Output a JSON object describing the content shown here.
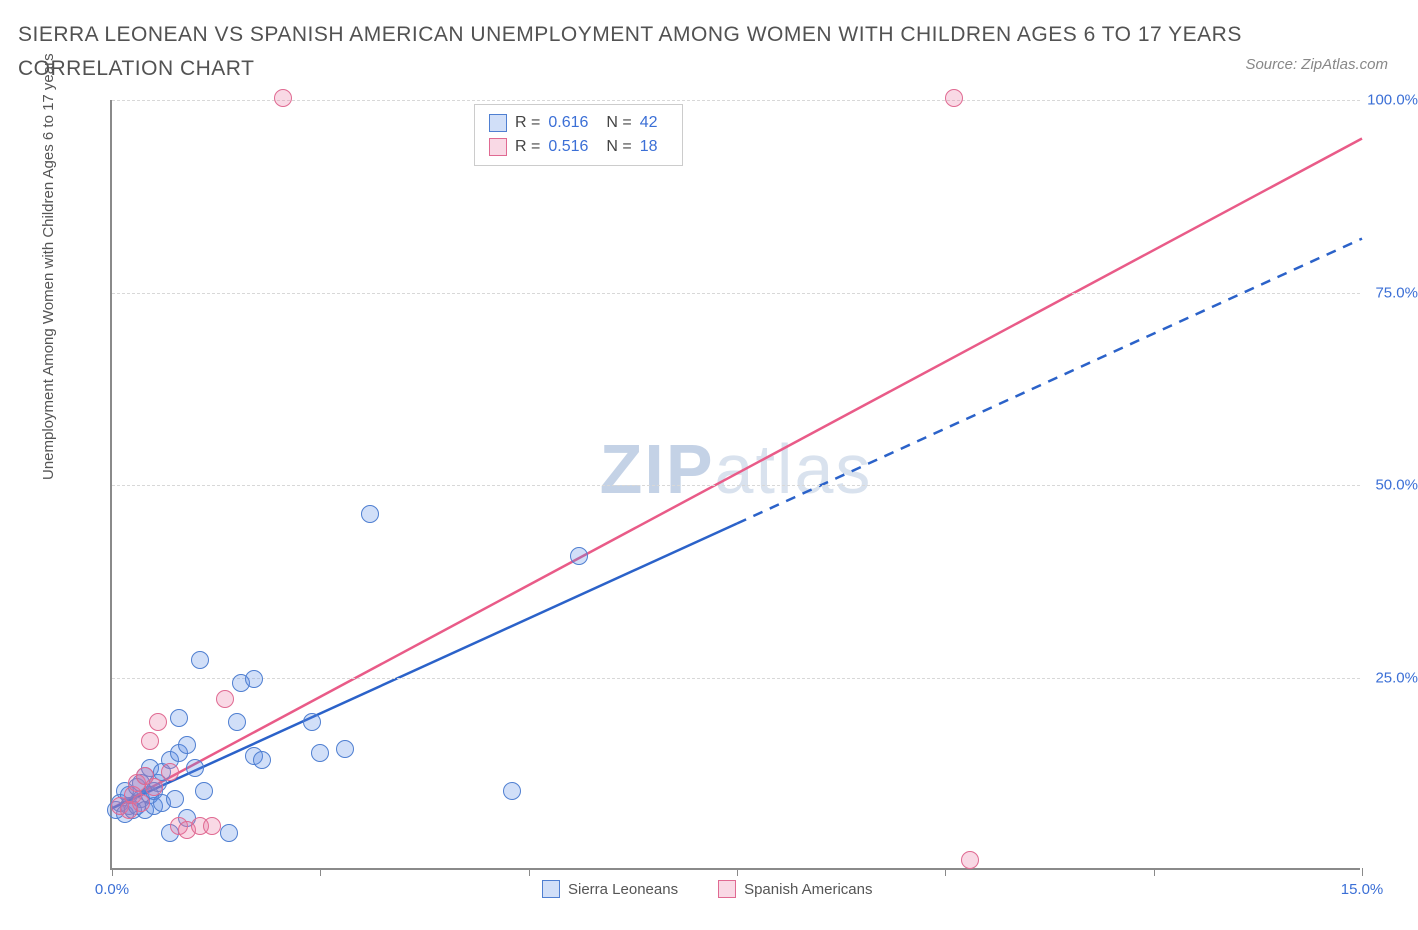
{
  "title": "SIERRA LEONEAN VS SPANISH AMERICAN UNEMPLOYMENT AMONG WOMEN WITH CHILDREN AGES 6 TO 17 YEARS CORRELATION CHART",
  "source": "Source: ZipAtlas.com",
  "watermark_bold": "ZIP",
  "watermark_light": "atlas",
  "ylabel": "Unemployment Among Women with Children Ages 6 to 17 years",
  "chart": {
    "type": "scatter",
    "background_color": "#ffffff",
    "grid_color": "#d8d8d8",
    "axis_color": "#8a8a8a",
    "x": {
      "min": 0.0,
      "max": 15.0,
      "ticks": [
        0.0,
        2.5,
        5.0,
        7.5,
        10.0,
        12.5,
        15.0
      ],
      "tick_labels": [
        "0.0%",
        "",
        "",
        "",
        "",
        "",
        "15.0%"
      ]
    },
    "y": {
      "min": 0.0,
      "max": 100.0,
      "ticks": [
        25.0,
        50.0,
        75.0,
        100.0
      ],
      "tick_labels": [
        "25.0%",
        "50.0%",
        "75.0%",
        "100.0%"
      ]
    },
    "series": [
      {
        "name": "Sierra Leoneans",
        "fill": "rgba(90,140,230,0.28)",
        "stroke": "#4f7fd1",
        "trend_color": "#2b62c9",
        "marker_radius": 9,
        "line_width": 2.5,
        "r": 0.616,
        "n": 42,
        "trend": {
          "x1": 0.0,
          "y1": 8.0,
          "x2": 7.5,
          "y2": 45.0,
          "dash_to_x": 15.0,
          "dash_to_y": 82.0
        },
        "points": [
          [
            0.05,
            7.5
          ],
          [
            0.1,
            8.5
          ],
          [
            0.15,
            7.0
          ],
          [
            0.15,
            10.0
          ],
          [
            0.2,
            8.0
          ],
          [
            0.2,
            9.5
          ],
          [
            0.25,
            7.5
          ],
          [
            0.3,
            8.0
          ],
          [
            0.3,
            10.5
          ],
          [
            0.35,
            9.0
          ],
          [
            0.35,
            11.0
          ],
          [
            0.4,
            7.5
          ],
          [
            0.4,
            12.0
          ],
          [
            0.45,
            9.5
          ],
          [
            0.45,
            13.0
          ],
          [
            0.5,
            8.0
          ],
          [
            0.5,
            10.0
          ],
          [
            0.55,
            11.0
          ],
          [
            0.6,
            8.5
          ],
          [
            0.6,
            12.5
          ],
          [
            0.7,
            14.0
          ],
          [
            0.7,
            4.5
          ],
          [
            0.75,
            9.0
          ],
          [
            0.8,
            15.0
          ],
          [
            0.8,
            19.5
          ],
          [
            0.9,
            6.5
          ],
          [
            0.9,
            16.0
          ],
          [
            1.0,
            13.0
          ],
          [
            1.05,
            27.0
          ],
          [
            1.1,
            10.0
          ],
          [
            1.4,
            4.5
          ],
          [
            1.5,
            19.0
          ],
          [
            1.55,
            24.0
          ],
          [
            1.7,
            14.5
          ],
          [
            1.7,
            24.5
          ],
          [
            1.8,
            14.0
          ],
          [
            2.4,
            19.0
          ],
          [
            2.5,
            15.0
          ],
          [
            2.8,
            15.5
          ],
          [
            3.1,
            46.0
          ],
          [
            4.8,
            10.0
          ],
          [
            5.6,
            40.5
          ]
        ]
      },
      {
        "name": "Spanish Americans",
        "fill": "rgba(235,120,160,0.28)",
        "stroke": "#e06a92",
        "trend_color": "#e95b88",
        "marker_radius": 9,
        "line_width": 2.5,
        "r": 0.516,
        "n": 18,
        "trend": {
          "x1": 0.0,
          "y1": 8.0,
          "x2": 15.0,
          "y2": 95.0
        },
        "points": [
          [
            0.1,
            8.0
          ],
          [
            0.2,
            7.5
          ],
          [
            0.25,
            9.5
          ],
          [
            0.3,
            11.0
          ],
          [
            0.35,
            8.5
          ],
          [
            0.4,
            12.0
          ],
          [
            0.45,
            16.5
          ],
          [
            0.5,
            10.5
          ],
          [
            0.55,
            19.0
          ],
          [
            0.7,
            12.5
          ],
          [
            0.8,
            5.5
          ],
          [
            0.9,
            5.0
          ],
          [
            1.05,
            5.5
          ],
          [
            1.2,
            5.5
          ],
          [
            1.35,
            22.0
          ],
          [
            2.05,
            100.0
          ],
          [
            10.1,
            100.0
          ],
          [
            10.3,
            1.0
          ]
        ]
      }
    ],
    "legend_bottom": [
      "Sierra Leoneans",
      "Spanish Americans"
    ],
    "stats_box": {
      "r_label": "R =",
      "n_label": "N ="
    }
  },
  "colors": {
    "title": "#525252",
    "axis_num": "#3b6fd6"
  }
}
